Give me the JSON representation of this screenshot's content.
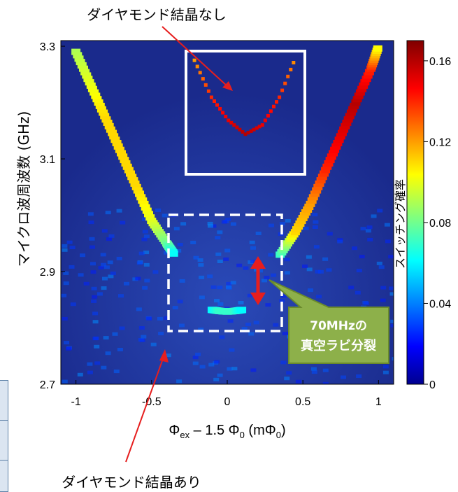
{
  "chart_data": {
    "type": "heatmap",
    "title": "",
    "xlabel_parts": {
      "main": "Φ",
      "sub1": "ex",
      "mid": " – 1.5 Φ",
      "sub2": "0",
      "tail": " (mΦ",
      "sub3": "0",
      "end": ")"
    },
    "ylabel": "マイクロ波周波数 (GHz)",
    "xlim": [
      -1.1,
      1.1
    ],
    "ylim": [
      2.7,
      3.31
    ],
    "x_ticks": [
      -1,
      -0.5,
      0,
      0.5,
      1
    ],
    "x_tick_labels": [
      "-1",
      "-0.5",
      "0",
      "0.5",
      "1"
    ],
    "y_ticks": [
      2.7,
      2.9,
      3.1,
      3.3
    ],
    "y_tick_labels": [
      "2.7",
      "2.9",
      "3.1",
      "3.3"
    ],
    "colorbar": {
      "label": "スイッチング確率",
      "range": [
        0,
        0.17
      ],
      "ticks": [
        0,
        0.04,
        0.08,
        0.12,
        0.16
      ],
      "tick_labels": [
        "0",
        "0.04",
        "0.08",
        "0.12",
        "0.16"
      ],
      "colormap": "jet"
    },
    "series": [
      {
        "branch": "left-upper",
        "x": [
          -1.0,
          -0.9,
          -0.8,
          -0.7,
          -0.6,
          -0.5,
          -0.4,
          -0.35
        ],
        "y": [
          3.29,
          3.23,
          3.17,
          3.11,
          3.05,
          2.99,
          2.95,
          2.93
        ],
        "intensity": [
          0.09,
          0.1,
          0.11,
          0.11,
          0.11,
          0.1,
          0.08,
          0.06
        ]
      },
      {
        "branch": "right-upper",
        "x": [
          0.35,
          0.45,
          0.55,
          0.65,
          0.75,
          0.85,
          0.95,
          1.0
        ],
        "y": [
          2.93,
          2.97,
          3.02,
          3.08,
          3.14,
          3.2,
          3.26,
          3.3
        ],
        "intensity": [
          0.07,
          0.11,
          0.12,
          0.14,
          0.15,
          0.16,
          0.14,
          0.1
        ]
      },
      {
        "branch": "lower-split",
        "x": [
          -0.1,
          -0.05,
          0.0,
          0.05,
          0.1
        ],
        "y": [
          2.832,
          2.83,
          2.829,
          2.83,
          2.832
        ],
        "intensity": [
          0.06,
          0.07,
          0.07,
          0.07,
          0.06
        ]
      },
      {
        "branch": "inset-no-diamond",
        "x": [
          -0.3,
          -0.2,
          -0.1,
          0.0,
          0.1,
          0.2,
          0.3
        ],
        "y": [
          3.28,
          3.2,
          3.15,
          3.12,
          3.14,
          3.2,
          3.29
        ],
        "intensity": [
          0.12,
          0.14,
          0.15,
          0.16,
          0.15,
          0.14,
          0.12
        ]
      }
    ],
    "annotations": {
      "top_label": "ダイヤモンド結晶なし",
      "bottom_label": "ダイヤモンド結晶あり",
      "callout_line1": "70MHzの",
      "callout_line2": "真空ラビ分裂"
    },
    "colors": {
      "background": "#1a2a8c",
      "callout_fill": "#8db04a",
      "callout_border": "#6a8a2c",
      "arrow_red": "#e61e1e",
      "box_white": "#ffffff"
    }
  }
}
